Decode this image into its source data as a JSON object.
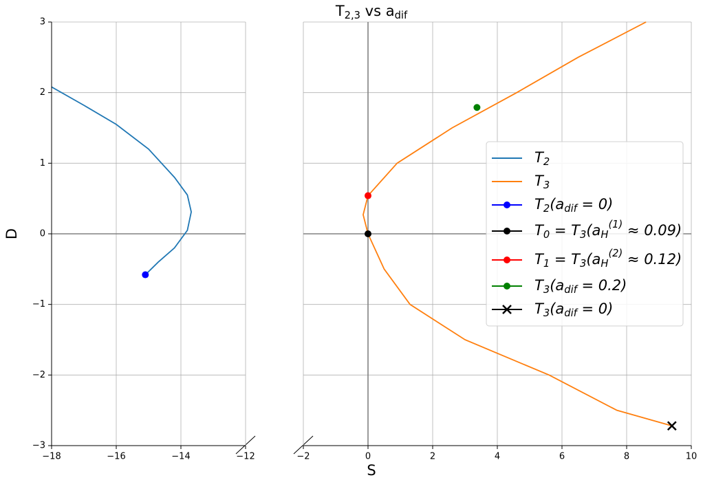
{
  "chart_data": {
    "type": "line",
    "title": "T_{2,3} vs a_{dif}",
    "x_label": "S",
    "y_label": "D",
    "ylim": [
      -3,
      3
    ],
    "yticks": [
      {
        "value": -3,
        "label": "−3"
      },
      {
        "value": -2,
        "label": "−2"
      },
      {
        "value": -1,
        "label": "−1"
      },
      0,
      1,
      2,
      3
    ],
    "grid": true,
    "legend": "center right",
    "panels": [
      {
        "xlim": [
          -18,
          -12
        ],
        "xticks": [
          {
            "value": -18,
            "label": "−18"
          },
          {
            "value": -16,
            "label": "−16"
          },
          {
            "value": -14,
            "label": "−14"
          },
          {
            "value": -12,
            "label": "−12"
          }
        ]
      },
      {
        "xlim": [
          -2,
          10
        ],
        "xticks": [
          {
            "value": -2,
            "label": "−2"
          },
          0,
          2,
          4,
          6,
          8,
          10
        ]
      }
    ],
    "series": [
      {
        "name": "T_{2}",
        "color": "#1f77b4",
        "panel": 0,
        "marker": "none",
        "x": [
          -18,
          -17,
          -16,
          -15,
          -14.2,
          -13.8,
          -13.68,
          -13.8,
          -14.2,
          -14.7,
          -15.1
        ],
        "values": [
          2.08,
          1.82,
          1.55,
          1.2,
          0.8,
          0.55,
          0.31,
          0.05,
          -0.2,
          -0.4,
          -0.58
        ]
      },
      {
        "name": "T_{3}",
        "color": "#ff7f0e",
        "panel": 1,
        "marker": "none",
        "x": [
          8.6,
          6.5,
          4.6,
          2.6,
          0.9,
          0.0,
          -0.15,
          0.0,
          0.5,
          1.3,
          3.0,
          5.6,
          7.7,
          9.4
        ],
        "values": [
          3.0,
          2.5,
          2.0,
          1.5,
          1.0,
          0.54,
          0.27,
          0.0,
          -0.5,
          -1.0,
          -1.5,
          -2.0,
          -2.5,
          -2.72
        ]
      },
      {
        "name": "T_{2}(a_{dif} = 0)",
        "color": "#0000ff",
        "panel": 0,
        "marker": "o",
        "x": [
          -15.1
        ],
        "values": [
          -0.58
        ]
      },
      {
        "name": "T_{0} = T_{3}(a_{H}^{(1)} ≈ 0.09)",
        "color": "#000000",
        "panel": 1,
        "marker": "o",
        "x": [
          0.0
        ],
        "values": [
          0.0
        ]
      },
      {
        "name": "T_{1} = T_{3}(a_{H}^{(2)} ≈ 0.12)",
        "color": "#ff0000",
        "panel": 1,
        "marker": "o",
        "x": [
          0.0
        ],
        "values": [
          0.54
        ]
      },
      {
        "name": "T_{3}(a_{dif} = 0.2)",
        "color": "#008000",
        "panel": 1,
        "marker": "o",
        "x": [
          3.37
        ],
        "values": [
          1.79
        ]
      },
      {
        "name": "T_{3}(a_{dif} = 0)",
        "color": "#000000",
        "panel": 1,
        "marker": "x",
        "x": [
          9.4
        ],
        "values": [
          -2.72
        ]
      }
    ]
  }
}
